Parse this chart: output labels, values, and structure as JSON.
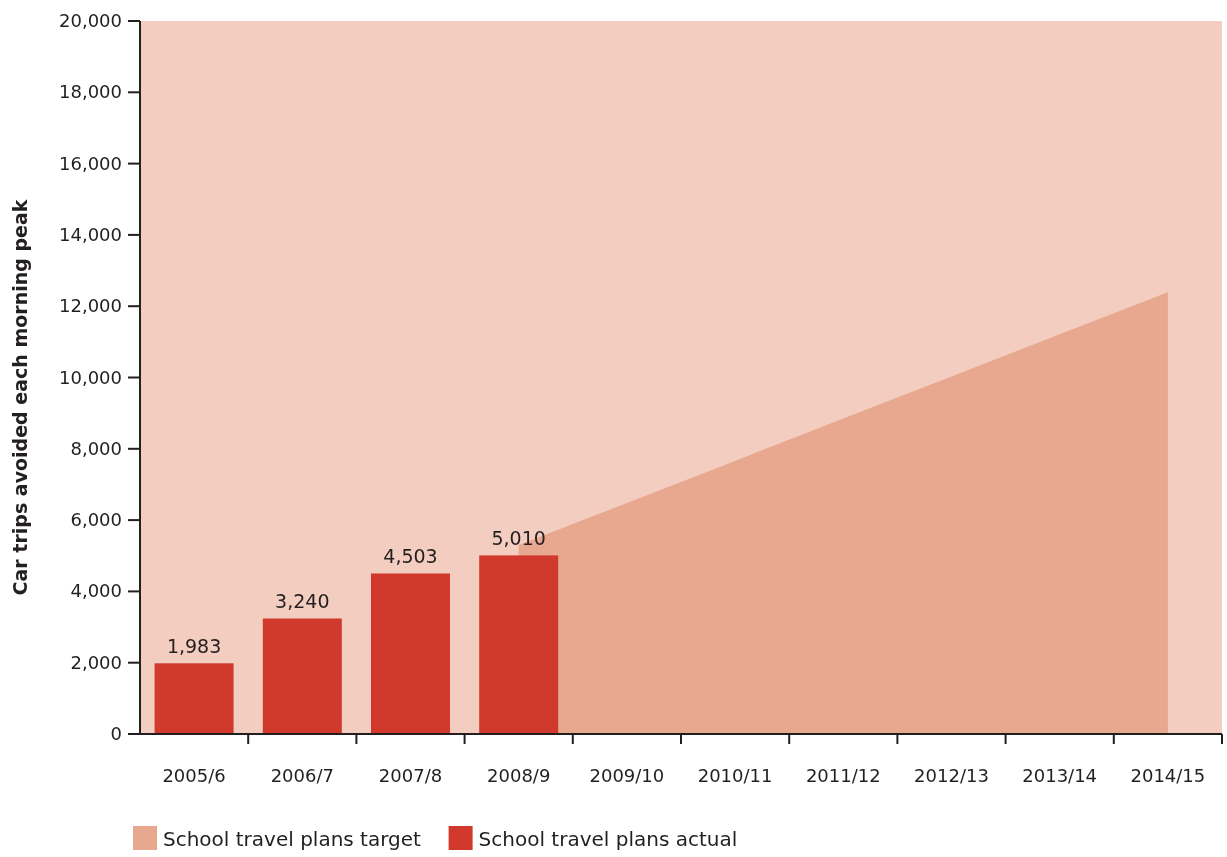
{
  "chart_data": {
    "type": "bar",
    "ylabel": "Car trips avoided each morning peak",
    "categories": [
      "2005/6",
      "2006/7",
      "2007/8",
      "2008/9",
      "2009/10",
      "2010/11",
      "2011/12",
      "2012/13",
      "2013/14",
      "2014/15"
    ],
    "series": [
      {
        "name": "School travel plans target",
        "type": "area",
        "color": "#e8a890",
        "values": [
          null,
          null,
          null,
          5300,
          6480,
          7660,
          8850,
          10030,
          11210,
          12390
        ]
      },
      {
        "name": "School travel plans actual",
        "type": "bar",
        "color": "#d0392b",
        "values": [
          1983,
          3240,
          4503,
          5010,
          null,
          null,
          null,
          null,
          null,
          null
        ],
        "value_labels": [
          "1,983",
          "3,240",
          "4,503",
          "5,010",
          null,
          null,
          null,
          null,
          null,
          null
        ]
      }
    ],
    "ylim": [
      0,
      20000
    ],
    "yticks": [
      0,
      {
        "value": 2000,
        "label": "2,000"
      },
      {
        "value": 4000,
        "label": "4,000"
      },
      {
        "value": 6000,
        "label": "6,000"
      },
      {
        "value": 8000,
        "label": "8,000"
      },
      {
        "value": 10000,
        "label": "10,000"
      },
      {
        "value": 12000,
        "label": "12,000"
      },
      {
        "value": 14000,
        "label": "14,000"
      },
      {
        "value": 16000,
        "label": "16,000"
      },
      {
        "value": 18000,
        "label": "18,000"
      },
      {
        "value": 20000,
        "label": "20,000"
      }
    ],
    "grid": false,
    "legend": "bottom"
  }
}
